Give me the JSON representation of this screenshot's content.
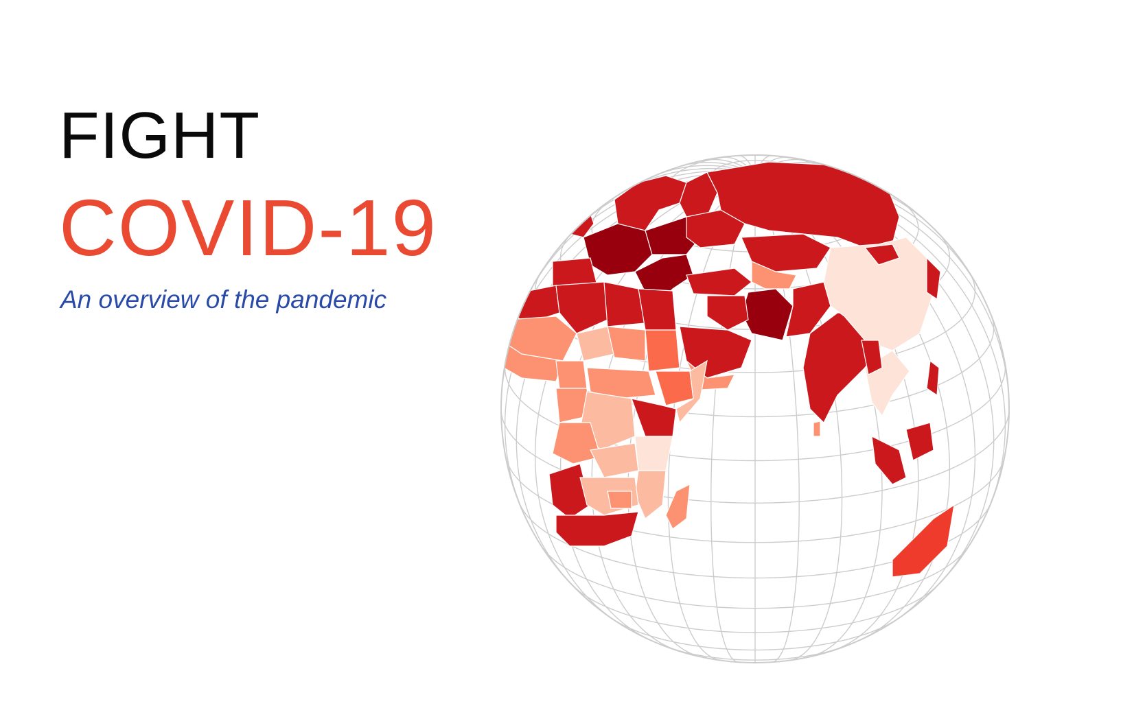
{
  "hero": {
    "title_line_1": "FIGHT",
    "title_line_2": "COVID-19",
    "subtitle": "An overview of the pandemic"
  },
  "colors": {
    "title_dark": "#0a0a0a",
    "accent": "#ea4a32",
    "subtitle": "#2a4aa8",
    "graticule": "#cccccc",
    "land_border": "#ffffff",
    "severity_scale": [
      "#fde3d8",
      "#fcbba1",
      "#fc9272",
      "#fb6a4a",
      "#ef3b2c",
      "#cb181d",
      "#99000d"
    ]
  },
  "map": {
    "projection": "orthographic",
    "centered_on": "Africa / Middle East",
    "graticule": true,
    "icon": "globe-icon"
  }
}
